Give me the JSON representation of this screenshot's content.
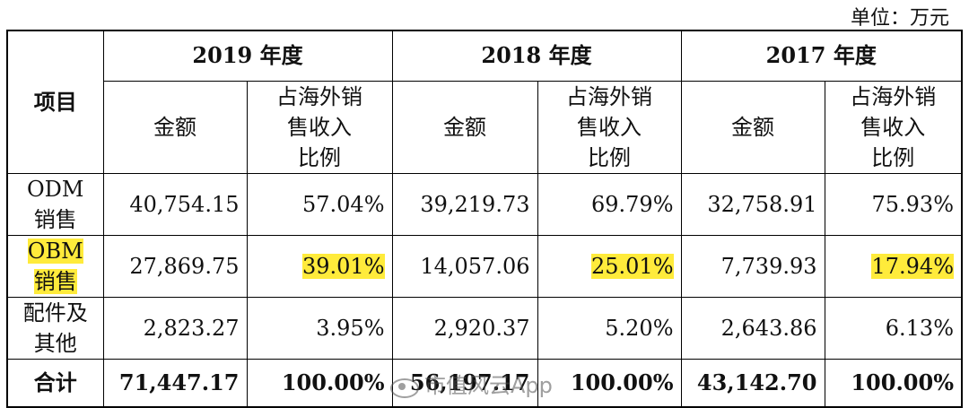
{
  "unit_label": "单位：万元",
  "header": {
    "item_label": "项目",
    "years": [
      "2019 年度",
      "2018 年度",
      "2017 年度"
    ],
    "amount_label": "金额",
    "ratio_label_line1": "占海外销",
    "ratio_label_line2": "售收入",
    "ratio_label_line3": "比例"
  },
  "rows": [
    {
      "label_line1": "ODM",
      "label_line2": "销售",
      "values": [
        "40,754.15",
        "57.04%",
        "39,219.73",
        "69.79%",
        "32,758.91",
        "75.93%"
      ]
    },
    {
      "label_line1": "OBM",
      "label_line2": "销售",
      "values": [
        "27,869.75",
        "39.01%",
        "14,057.06",
        "25.01%",
        "7,739.93",
        "17.94%"
      ]
    },
    {
      "label_line1": "配件及",
      "label_line2": "其他",
      "values": [
        "2,823.27",
        "3.95%",
        "2,920.37",
        "5.20%",
        "2,643.86",
        "6.13%"
      ]
    }
  ],
  "total": {
    "label": "合计",
    "values": [
      "71,447.17",
      "100.00%",
      "56,197.17",
      "100.00%",
      "43,142.70",
      "100.00%"
    ]
  },
  "highlight_color": "#ffeb3b",
  "watermark_text": "市值风云App"
}
